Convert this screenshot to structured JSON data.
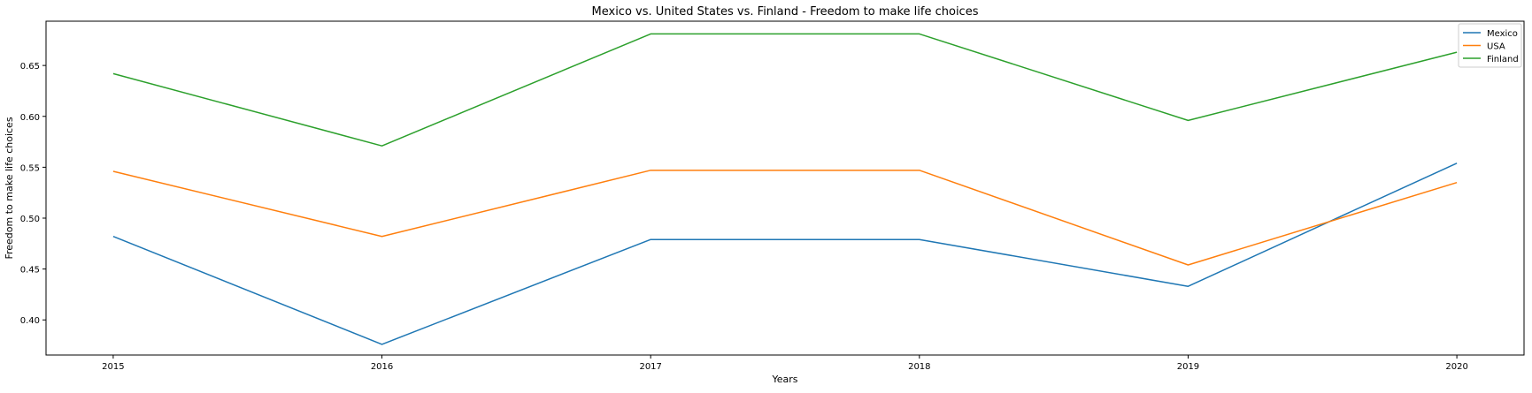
{
  "chart_data": {
    "type": "line",
    "title": "Mexico vs. United States vs. Finland - Freedom to make life choices",
    "xlabel": "Years",
    "ylabel": "Freedom to make life choices",
    "x": [
      2015,
      2016,
      2017,
      2018,
      2019,
      2020
    ],
    "x_tick_labels": [
      "2015",
      "2016",
      "2017",
      "2018",
      "2019",
      "2020"
    ],
    "xlim": [
      2014.75,
      2020.25
    ],
    "ylim": [
      0.3655,
      0.6935
    ],
    "y_ticks": [
      0.4,
      0.45,
      0.5,
      0.55,
      0.6,
      0.65
    ],
    "y_tick_labels": [
      "0.40",
      "0.45",
      "0.50",
      "0.55",
      "0.60",
      "0.65"
    ],
    "grid": false,
    "legend_position": "top-right",
    "series": [
      {
        "name": "Mexico",
        "color": "#1f77b4",
        "values": [
          0.482,
          0.376,
          0.479,
          0.479,
          0.433,
          0.554
        ]
      },
      {
        "name": "USA",
        "color": "#ff7f0e",
        "values": [
          0.546,
          0.482,
          0.547,
          0.547,
          0.454,
          0.535
        ]
      },
      {
        "name": "Finland",
        "color": "#2ca02c",
        "values": [
          0.642,
          0.571,
          0.681,
          0.681,
          0.596,
          0.663
        ]
      }
    ]
  }
}
